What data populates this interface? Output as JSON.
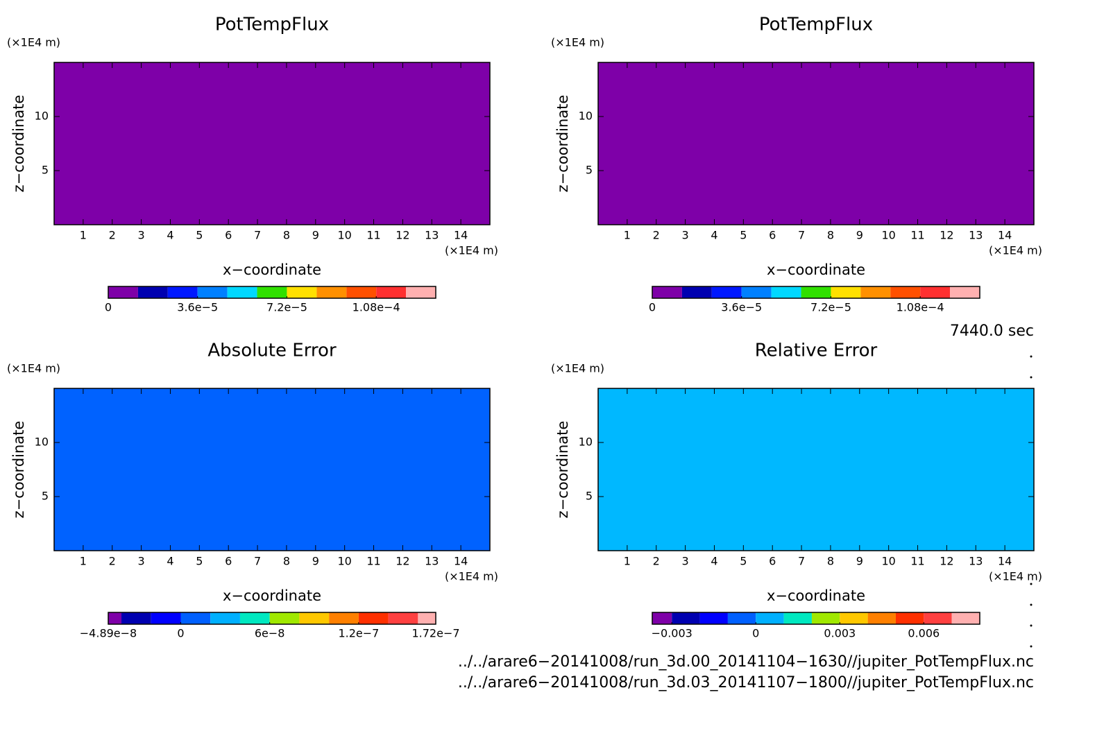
{
  "chart_data": [
    {
      "type": "heatmap",
      "title": "PotTempFlux",
      "xlabel": "x−coordinate",
      "ylabel": "z−coordinate",
      "x_unit": "(×1E4 m)",
      "y_unit": "(×1E4 m)",
      "xlim": [
        0,
        15
      ],
      "ylim": [
        0,
        15
      ],
      "xticks": [
        1,
        2,
        3,
        4,
        5,
        6,
        7,
        8,
        9,
        10,
        11,
        12,
        13,
        14
      ],
      "yticks": [
        5,
        10
      ],
      "fill_color": "#7e00a8",
      "colorbar": {
        "clim": [
          0,
          0.000132
        ],
        "levels": [
          0,
          1.2e-05,
          2.4e-05,
          3.6e-05,
          4.8e-05,
          6e-05,
          7.2e-05,
          8.4e-05,
          9.6e-05,
          0.000108,
          0.00012,
          0.000132
        ],
        "colors": [
          "#7e00a8",
          "#0000b0",
          "#0018ff",
          "#0080ff",
          "#00d8ff",
          "#30e000",
          "#ffe000",
          "#ff9000",
          "#ff5000",
          "#ff3030",
          "#ffb0b0"
        ],
        "ticks": [
          {
            "value": 0,
            "label": "0"
          },
          {
            "value": 3.6e-05,
            "label": "3.6e−5"
          },
          {
            "value": 7.2e-05,
            "label": "7.2e−5"
          },
          {
            "value": 0.000108,
            "label": "1.08e−4"
          }
        ]
      }
    },
    {
      "type": "heatmap",
      "title": "PotTempFlux",
      "xlabel": "x−coordinate",
      "ylabel": "z−coordinate",
      "x_unit": "(×1E4 m)",
      "y_unit": "(×1E4 m)",
      "xlim": [
        0,
        15
      ],
      "ylim": [
        0,
        15
      ],
      "xticks": [
        1,
        2,
        3,
        4,
        5,
        6,
        7,
        8,
        9,
        10,
        11,
        12,
        13,
        14
      ],
      "yticks": [
        5,
        10
      ],
      "fill_color": "#7e00a8",
      "colorbar": {
        "clim": [
          0,
          0.000132
        ],
        "levels": [
          0,
          1.2e-05,
          2.4e-05,
          3.6e-05,
          4.8e-05,
          6e-05,
          7.2e-05,
          8.4e-05,
          9.6e-05,
          0.000108,
          0.00012,
          0.000132
        ],
        "colors": [
          "#7e00a8",
          "#0000b0",
          "#0018ff",
          "#0080ff",
          "#00d8ff",
          "#30e000",
          "#ffe000",
          "#ff9000",
          "#ff5000",
          "#ff3030",
          "#ffb0b0"
        ],
        "ticks": [
          {
            "value": 0,
            "label": "0"
          },
          {
            "value": 3.6e-05,
            "label": "3.6e−5"
          },
          {
            "value": 7.2e-05,
            "label": "7.2e−5"
          },
          {
            "value": 0.000108,
            "label": "1.08e−4"
          }
        ]
      }
    },
    {
      "type": "heatmap",
      "title": "Absolute Error",
      "xlabel": "x−coordinate",
      "ylabel": "z−coordinate",
      "x_unit": "(×1E4 m)",
      "y_unit": "(×1E4 m)",
      "xlim": [
        0,
        15
      ],
      "ylim": [
        0,
        15
      ],
      "xticks": [
        1,
        2,
        3,
        4,
        5,
        6,
        7,
        8,
        9,
        10,
        11,
        12,
        13,
        14
      ],
      "yticks": [
        5,
        10
      ],
      "fill_color": "#0062ff",
      "colorbar": {
        "clim": [
          -4.89e-08,
          1.72e-07
        ],
        "levels": [
          -4.89e-08,
          -4e-08,
          -2e-08,
          0,
          2e-08,
          4e-08,
          6e-08,
          8e-08,
          1e-07,
          1.2e-07,
          1.4e-07,
          1.6e-07,
          1.72e-07
        ],
        "colors": [
          "#7e00a8",
          "#0000b0",
          "#0000ff",
          "#0060ff",
          "#00b0ff",
          "#00e8c0",
          "#a0e800",
          "#ffc800",
          "#ff8000",
          "#ff3000",
          "#ff4040",
          "#ffb0b0"
        ],
        "ticks": [
          {
            "value": -4.89e-08,
            "label": "−4.89e−8"
          },
          {
            "value": 0,
            "label": "0"
          },
          {
            "value": 6e-08,
            "label": "6e−8"
          },
          {
            "value": 1.2e-07,
            "label": "1.2e−7"
          },
          {
            "value": 1.72e-07,
            "label": "1.72e−7"
          }
        ]
      }
    },
    {
      "type": "heatmap",
      "title": "Relative Error",
      "xlabel": "x−coordinate",
      "ylabel": "z−coordinate",
      "x_unit": "(×1E4 m)",
      "y_unit": "(×1E4 m)",
      "xlim": [
        0,
        15
      ],
      "ylim": [
        0,
        15
      ],
      "xticks": [
        1,
        2,
        3,
        4,
        5,
        6,
        7,
        8,
        9,
        10,
        11,
        12,
        13,
        14
      ],
      "yticks": [
        5,
        10
      ],
      "fill_color": "#00b8ff",
      "colorbar": {
        "clim": [
          -0.0037,
          0.008
        ],
        "levels": [
          -0.0037,
          -0.003,
          -0.002,
          -0.001,
          0,
          0.001,
          0.002,
          0.003,
          0.004,
          0.005,
          0.006,
          0.007,
          0.008
        ],
        "colors": [
          "#7e00a8",
          "#0000b0",
          "#0000ff",
          "#0060ff",
          "#00b0ff",
          "#00e8c0",
          "#a0e800",
          "#ffc800",
          "#ff8000",
          "#ff3000",
          "#ff4040",
          "#ffb0b0"
        ],
        "ticks": [
          {
            "value": -0.003,
            "label": "−0.003"
          },
          {
            "value": 0,
            "label": "0"
          },
          {
            "value": 0.003,
            "label": "0.003"
          },
          {
            "value": 0.006,
            "label": "0.006"
          }
        ]
      }
    }
  ],
  "time_label": "7440.0 sec",
  "files": [
    "../../arare6−20141008/run_3d.00_20141104−1630//jupiter_PotTempFlux.nc",
    "../../arare6−20141008/run_3d.03_20141107−1800//jupiter_PotTempFlux.nc"
  ]
}
